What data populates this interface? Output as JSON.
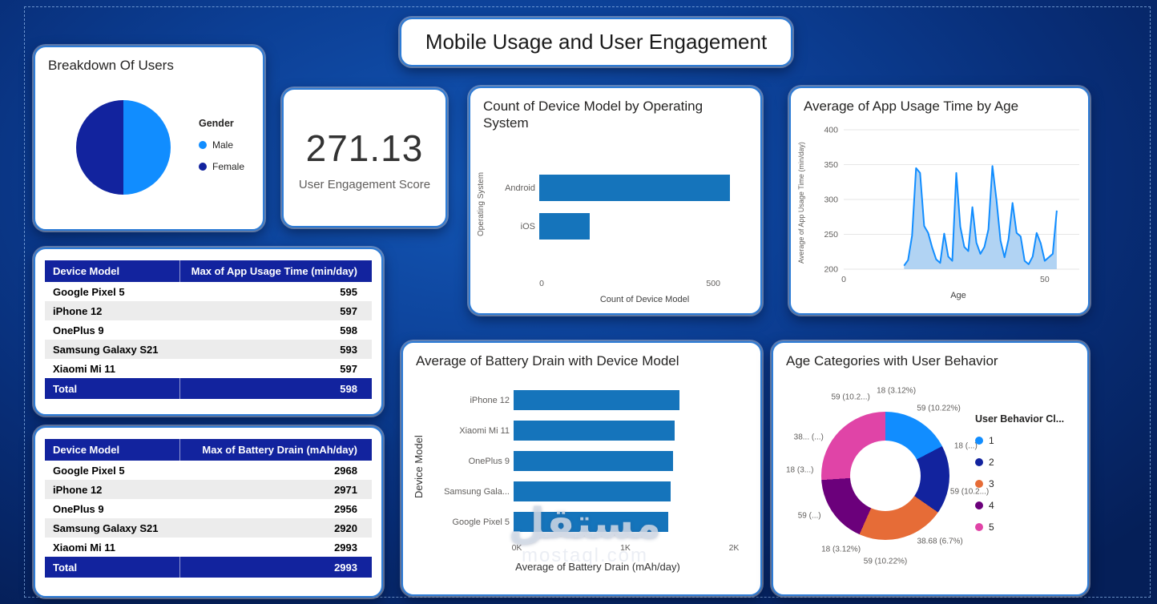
{
  "title_banner": "Mobile Usage and User Engagement",
  "kpi": {
    "value": "271.13",
    "label": "User Engagement Score"
  },
  "watermark": {
    "arabic": "مستقل",
    "latin": "mostaql.com"
  },
  "palette": {
    "class1_blue": "#118DFF",
    "class2_navy": "#12239E",
    "class3_orange": "#E66C37",
    "class4_purple": "#6B007B",
    "class5_pink": "#E044A7",
    "bar_blue": "#1574BB",
    "table_header": "#12239E",
    "card_border": "#2E7CD6",
    "background": "#0C3F95"
  },
  "chart_data": [
    {
      "id": "gender_pie",
      "type": "pie",
      "title": "Breakdown Of Users",
      "legend_title": "Gender",
      "labels": [
        "Male",
        "Female"
      ],
      "values": [
        50,
        50
      ],
      "colors": [
        "#118DFF",
        "#12239E"
      ]
    },
    {
      "id": "os_bar",
      "type": "bar",
      "title": "Count of Device Model by Operating System",
      "categories": [
        "Android",
        "iOS"
      ],
      "values": [
        550,
        145
      ],
      "xlim": [
        0,
        600
      ],
      "xticks": [
        {
          "value": 0,
          "label": "0"
        },
        {
          "value": 500,
          "label": "500"
        }
      ],
      "xlabel": "Count of Device Model",
      "ylabel": "Operating System",
      "bar_color": "#1574BB"
    },
    {
      "id": "age_area",
      "type": "area",
      "title": "Average of App Usage Time by Age",
      "x": [
        15,
        16,
        17,
        18,
        19,
        20,
        21,
        22,
        23,
        24,
        25,
        26,
        27,
        28,
        29,
        30,
        31,
        32,
        33,
        34,
        35,
        36,
        37,
        38,
        39,
        40,
        41,
        42,
        43,
        44,
        45,
        46,
        47,
        48,
        49,
        50,
        51,
        52,
        53
      ],
      "y": [
        205,
        213,
        248,
        345,
        338,
        262,
        252,
        231,
        214,
        209,
        251,
        218,
        212,
        338,
        261,
        232,
        226,
        289,
        238,
        222,
        232,
        257,
        348,
        299,
        241,
        217,
        243,
        295,
        252,
        247,
        212,
        207,
        218,
        252,
        237,
        212,
        217,
        222,
        284
      ],
      "xlim": [
        0,
        57
      ],
      "ylim": [
        200,
        400
      ],
      "xticks": [
        {
          "value": 0,
          "label": "0"
        },
        {
          "value": 50,
          "label": "50"
        }
      ],
      "yticks": [
        200,
        250,
        300,
        350,
        400
      ],
      "xlabel": "Age",
      "ylabel": "Average of App Usage Time (min/day)",
      "line_color": "#118DFF",
      "fill_color": "#A9CEF2"
    },
    {
      "id": "battery_bar",
      "type": "bar",
      "title": "Average of Battery Drain with Device Model",
      "categories": [
        "iPhone 12",
        "Xiaomi Mi 11",
        "OnePlus 9",
        "Samsung Gala...",
        "Google Pixel 5"
      ],
      "values": [
        1505,
        1460,
        1445,
        1425,
        1400
      ],
      "xlim": [
        0,
        2000
      ],
      "xticks": [
        {
          "value": 0,
          "label": "0K"
        },
        {
          "value": 1000,
          "label": "1K"
        },
        {
          "value": 2000,
          "label": "2K"
        }
      ],
      "xlabel": "Average of Battery Drain (mAh/day)",
      "ylabel": "Device Model",
      "bar_color": "#1574BB"
    },
    {
      "id": "age_donut",
      "type": "pie",
      "title": "Age Categories with User Behavior",
      "legend_title": "User Behavior Cl...",
      "legend_items": [
        {
          "label": "1",
          "color": "#118DFF"
        },
        {
          "label": "2",
          "color": "#12239E"
        },
        {
          "label": "3",
          "color": "#E66C37"
        },
        {
          "label": "4",
          "color": "#6B007B"
        },
        {
          "label": "5",
          "color": "#E044A7"
        }
      ],
      "slices": [
        {
          "label": "18 (3.12%)",
          "value": 3.12,
          "color": "#118DFF"
        },
        {
          "label": "59 (10.22%)",
          "value": 10.22,
          "color": "#118DFF"
        },
        {
          "label": "18 (...)",
          "value": 3.12,
          "color": "#12239E"
        },
        {
          "label": "59 (10.2...)",
          "value": 10.22,
          "color": "#12239E"
        },
        {
          "label": "38.68 (6.7%)",
          "value": 6.7,
          "color": "#E66C37"
        },
        {
          "label": "59 (10.22%)",
          "value": 10.22,
          "color": "#E66C37"
        },
        {
          "label": "18 (3.12%)",
          "value": 3.12,
          "color": "#6B007B"
        },
        {
          "label": "59 (...)",
          "value": 10.22,
          "color": "#6B007B"
        },
        {
          "label": "18 (3...)",
          "value": 3.12,
          "color": "#E044A7"
        },
        {
          "label": "38... (...)",
          "value": 6.7,
          "color": "#E044A7"
        },
        {
          "label": "59 (10.2...)",
          "value": 10.22,
          "color": "#E044A7"
        }
      ]
    },
    {
      "id": "usage_table",
      "type": "table",
      "columns": [
        "Device Model",
        "Max of App Usage Time (min/day)"
      ],
      "rows": [
        [
          "Google Pixel 5",
          "595"
        ],
        [
          "iPhone 12",
          "597"
        ],
        [
          "OnePlus 9",
          "598"
        ],
        [
          "Samsung Galaxy S21",
          "593"
        ],
        [
          "Xiaomi Mi 11",
          "597"
        ]
      ],
      "total": [
        "Total",
        "598"
      ]
    },
    {
      "id": "battery_table",
      "type": "table",
      "columns": [
        "Device Model",
        "Max of Battery Drain (mAh/day)"
      ],
      "rows": [
        [
          "Google Pixel 5",
          "2968"
        ],
        [
          "iPhone 12",
          "2971"
        ],
        [
          "OnePlus 9",
          "2956"
        ],
        [
          "Samsung Galaxy S21",
          "2920"
        ],
        [
          "Xiaomi Mi 11",
          "2993"
        ]
      ],
      "total": [
        "Total",
        "2993"
      ]
    }
  ]
}
